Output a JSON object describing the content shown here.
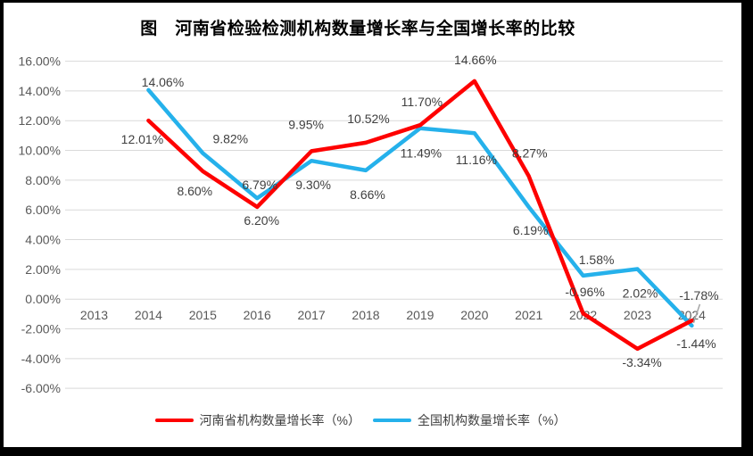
{
  "colors": {
    "henan_line": "#FE0000",
    "national_line": "#25B1EB",
    "grid": "#D9D9D9",
    "axis_text": "#595959",
    "data_label_text": "#3F3F3F",
    "leader_line": "#A6A6A6",
    "frame": "#000000",
    "background": "#FFFFFF"
  },
  "chart_data": {
    "type": "line",
    "title": "图　河南省检验检测机构数量增长率与全国增长率的比较",
    "categories": [
      "2013",
      "2014",
      "2015",
      "2016",
      "2017",
      "2018",
      "2019",
      "2020",
      "2021",
      "2022",
      "2023",
      "2024"
    ],
    "y_axis": {
      "min": -6,
      "max": 16,
      "step": 2,
      "tick_labels": [
        "16.00%",
        "14.00%",
        "12.00%",
        "10.00%",
        "8.00%",
        "6.00%",
        "4.00%",
        "2.00%",
        "0.00%",
        "-2.00%",
        "-4.00%",
        "-6.00%"
      ]
    },
    "grid": true,
    "legend_position": "bottom",
    "series": [
      {
        "name": "河南省机构数量增长率（%）",
        "color": "#FE0000",
        "values": [
          null,
          12.01,
          8.6,
          6.2,
          9.95,
          10.52,
          11.7,
          14.66,
          8.27,
          -0.96,
          -3.34,
          -1.44
        ],
        "labels": [
          null,
          "12.01%",
          "8.60%",
          "6.20%",
          "9.95%",
          "10.52%",
          "11.70%",
          "14.66%",
          "8.27%",
          "-0.96%",
          "-3.34%",
          "-1.44%"
        ],
        "label_offsets": [
          null,
          [
            -7,
            21
          ],
          [
            -9,
            22
          ],
          [
            5,
            15
          ],
          [
            -6,
            -30
          ],
          [
            3,
            -27
          ],
          [
            2,
            -26
          ],
          [
            1,
            -24
          ],
          [
            1,
            -26
          ],
          [
            2,
            -24
          ],
          [
            5,
            15
          ],
          [
            5,
            26
          ]
        ]
      },
      {
        "name": "全国机构数量增长率（%）",
        "color": "#25B1EB",
        "values": [
          null,
          14.06,
          9.82,
          6.79,
          9.3,
          8.66,
          11.49,
          11.16,
          6.19,
          1.58,
          2.02,
          -1.78
        ],
        "labels": [
          null,
          "14.06%",
          "9.82%",
          "6.79%",
          "9.30%",
          "8.66%",
          "11.49%",
          "11.16%",
          "6.19%",
          "1.58%",
          "2.02%",
          "-1.78%"
        ],
        "label_offsets": [
          null,
          [
            16,
            -9
          ],
          [
            31,
            -16
          ],
          [
            3,
            -15
          ],
          [
            2,
            27
          ],
          [
            2,
            27
          ],
          [
            1,
            28
          ],
          [
            2,
            30
          ],
          [
            2,
            26
          ],
          [
            15,
            -18
          ],
          [
            3,
            27
          ],
          [
            8,
            -34
          ]
        ],
        "leader_line_at": "2024"
      }
    ]
  }
}
